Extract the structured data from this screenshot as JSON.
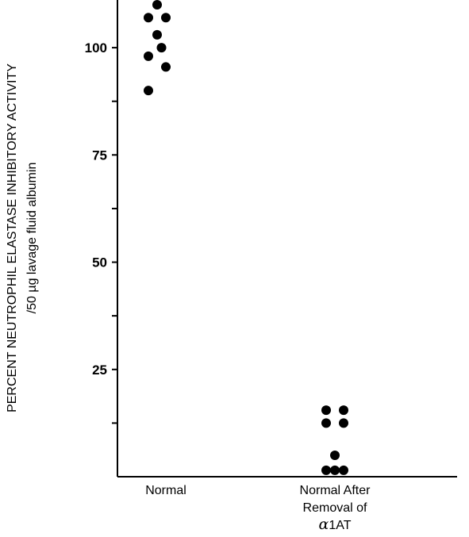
{
  "chart_data": {
    "type": "scatter",
    "ylabel_line1": "PERCENT NEUTROPHIL ELASTASE INHIBITORY ACTIVITY",
    "ylabel_line2": "/50 µg lavage fluid albumin",
    "ylim": [
      0,
      110
    ],
    "yticks": [
      25,
      50,
      75,
      100
    ],
    "yticks_unlabeled": [
      12.5,
      37.5,
      62.5,
      87.5
    ],
    "categories": [
      {
        "lines": [
          "Normal"
        ]
      },
      {
        "lines": [
          "Normal After",
          "Removal of",
          "α1AT"
        ]
      }
    ],
    "grid": false,
    "series": [
      {
        "category": 0,
        "points": [
          {
            "offset": -1,
            "y": 110
          },
          {
            "offset": -2,
            "y": 107
          },
          {
            "offset": 0,
            "y": 107
          },
          {
            "offset": -1,
            "y": 103
          },
          {
            "offset": -0.5,
            "y": 100
          },
          {
            "offset": -2,
            "y": 98
          },
          {
            "offset": 0,
            "y": 95.5
          },
          {
            "offset": -2,
            "y": 90
          }
        ]
      },
      {
        "category": 1,
        "points": [
          {
            "offset": -1,
            "y": 15.5
          },
          {
            "offset": 1,
            "y": 15.5
          },
          {
            "offset": -1,
            "y": 12.5
          },
          {
            "offset": 1,
            "y": 12.5
          },
          {
            "offset": 0,
            "y": 5
          },
          {
            "offset": -1,
            "y": 1.5
          },
          {
            "offset": 0,
            "y": 1.5
          },
          {
            "offset": 1,
            "y": 1.5
          }
        ]
      }
    ]
  }
}
